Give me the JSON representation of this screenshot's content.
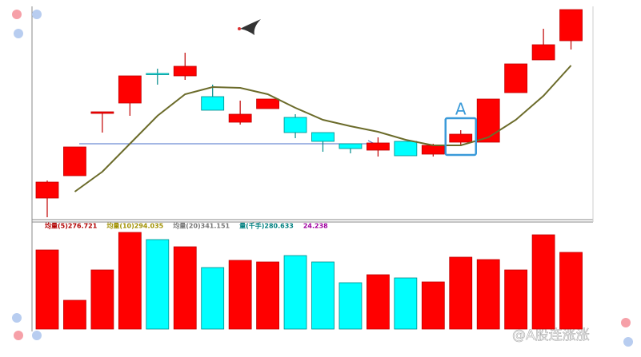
{
  "chart_data": [
    {
      "type": "candlestick",
      "open": [
        27,
        55,
        133,
        146,
        183,
        180,
        154,
        122,
        139,
        128,
        109,
        95,
        87,
        98,
        82,
        97,
        97,
        159,
        200,
        224
      ],
      "close": [
        47,
        91,
        135,
        180,
        183,
        192,
        137,
        132,
        151,
        109,
        98,
        89,
        96,
        80,
        93,
        107,
        151,
        195,
        219,
        263
      ],
      "high": [
        49,
        91,
        135,
        180,
        189,
        209,
        169,
        149,
        151,
        132,
        109,
        95,
        103,
        98,
        95,
        112,
        151,
        195,
        239,
        263
      ],
      "low": [
        3,
        55,
        109,
        130,
        169,
        175,
        137,
        119,
        139,
        102,
        85,
        83,
        79,
        80,
        79,
        92,
        97,
        159,
        200,
        213
      ],
      "colors": [
        "#ff0000",
        "#ff0000",
        "#ff0000",
        "#ff0000",
        "#00ffff",
        "#ff0000",
        "#00ffff",
        "#ff0000",
        "#ff0000",
        "#00ffff",
        "#00ffff",
        "#00ffff",
        "#ff0000",
        "#00ffff",
        "#ff0000",
        "#ff0000",
        "#ff0000",
        "#ff0000",
        "#ff0000",
        "#ff0000"
      ],
      "ma": {
        "color": "#6b6b2a",
        "values": [
          null,
          35,
          60,
          95,
          130,
          157,
          166,
          165,
          157,
          140,
          125,
          117,
          110,
          100,
          93,
          93,
          103,
          125,
          155,
          193
        ]
      },
      "annotation": {
        "text": "A",
        "index": 15
      },
      "ylim": [
        0,
        265
      ]
    },
    {
      "type": "bar",
      "values": [
        99,
        36,
        74,
        121,
        112,
        103,
        77,
        86,
        84,
        92,
        84,
        58,
        68,
        64,
        59,
        90,
        87,
        74,
        118,
        96
      ],
      "colors": [
        "#ff0000",
        "#ff0000",
        "#ff0000",
        "#ff0000",
        "#00ffff",
        "#ff0000",
        "#00ffff",
        "#ff0000",
        "#ff0000",
        "#00ffff",
        "#00ffff",
        "#00ffff",
        "#ff0000",
        "#00ffff",
        "#ff0000",
        "#ff0000",
        "#ff0000",
        "#ff0000",
        "#ff0000",
        "#ff0000"
      ],
      "ylim": [
        0,
        125
      ],
      "indicators": [
        {
          "text": "均量(5)276.721",
          "color": "#b00000"
        },
        {
          "text": "均量(10)294.035",
          "color": "#a09000"
        },
        {
          "text": "均量(20)341.151",
          "color": "#777777"
        },
        {
          "text": "量(千手)280.633",
          "color": "#008080"
        },
        {
          "text": "24.238",
          "color": "#a000a0"
        }
      ]
    }
  ],
  "watermark": "@A股连涨涨"
}
